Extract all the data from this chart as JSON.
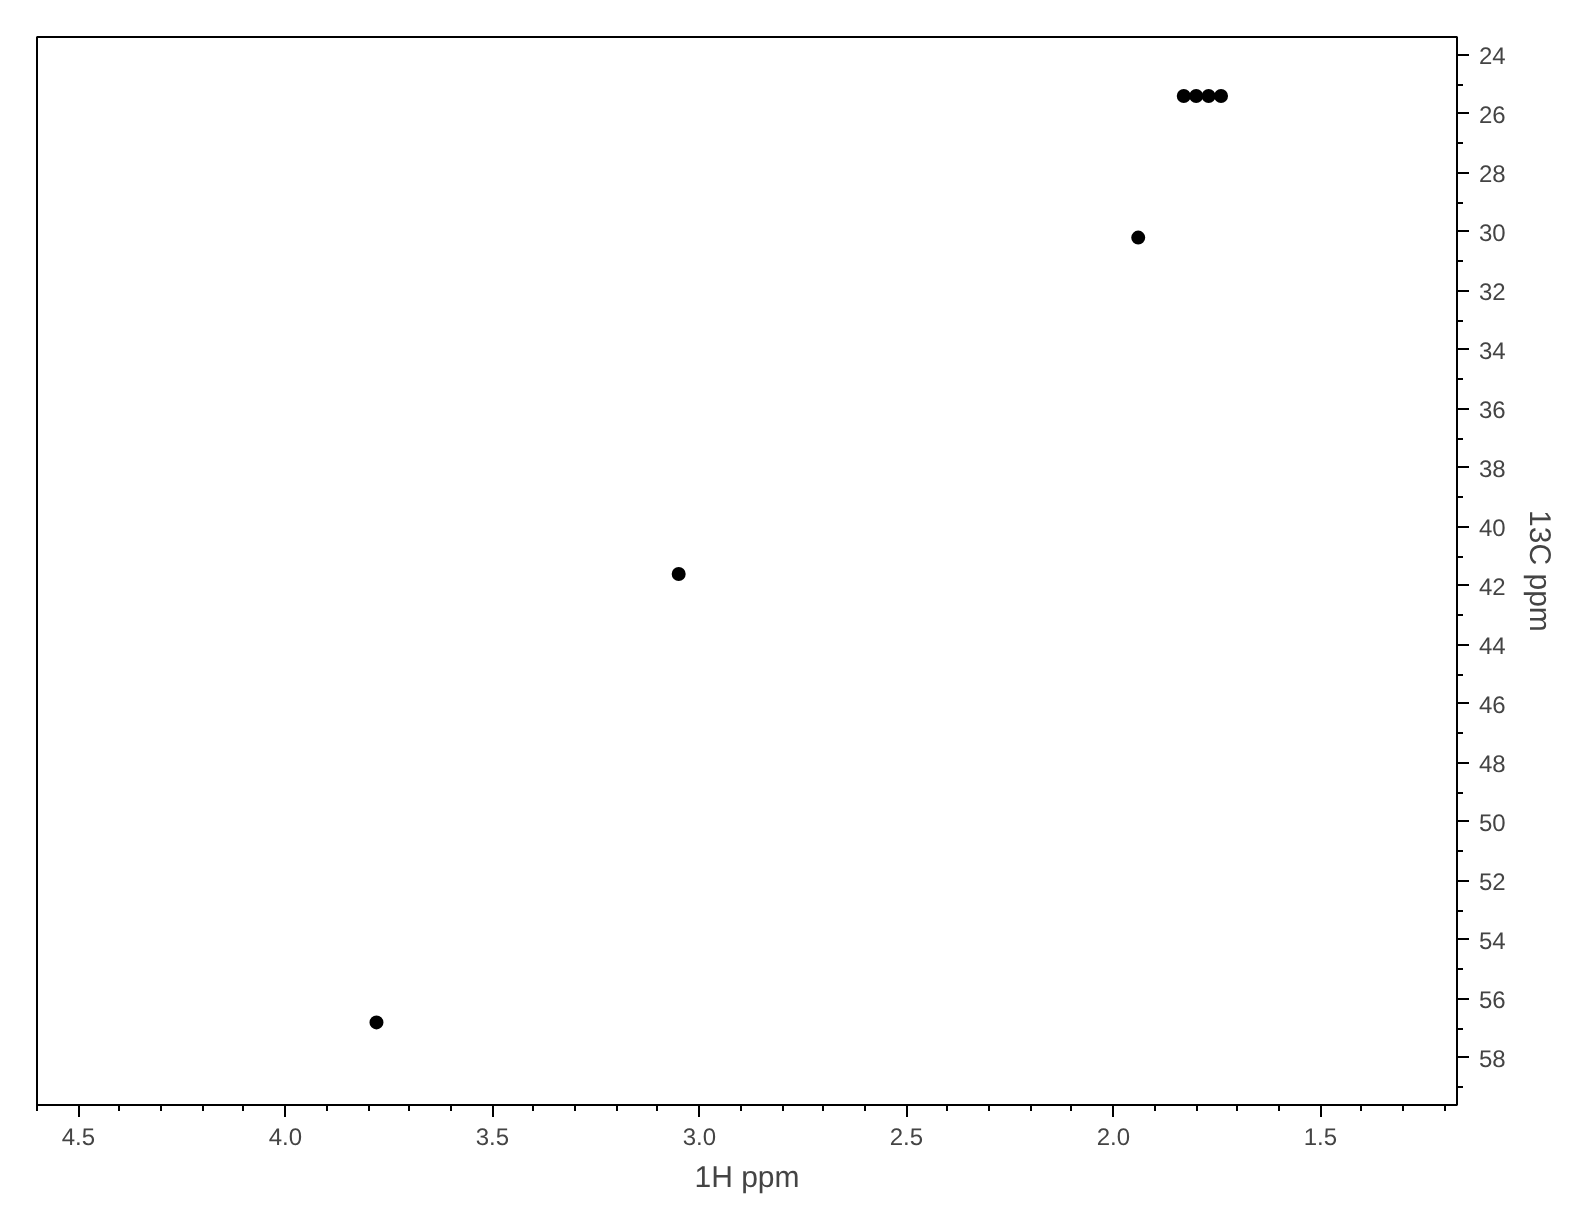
{
  "chart_data": {
    "type": "scatter",
    "xlabel": "1H ppm",
    "ylabel": "13C ppm",
    "series": [
      {
        "color": "#000000",
        "x": [
          3.78,
          3.05,
          1.94,
          1.74,
          1.77,
          1.8,
          1.83
        ],
        "values": [
          56.8,
          41.6,
          30.2,
          25.4,
          25.4,
          25.4,
          25.4
        ]
      }
    ],
    "xlim": [
      4.6,
      1.17
    ],
    "ylim": [
      59.6,
      23.4
    ],
    "xticks": [
      4.5,
      {
        "value": 4,
        "label": "4.0"
      },
      3.5,
      {
        "value": 3,
        "label": "3.0"
      },
      2.5,
      {
        "value": 2,
        "label": "2.0"
      },
      1.5
    ],
    "yticks": [
      24,
      26,
      28,
      30,
      32,
      34,
      36,
      38,
      40,
      42,
      44,
      46,
      48,
      50,
      52,
      54,
      56,
      58
    ],
    "grid": false,
    "marker": "circle"
  }
}
